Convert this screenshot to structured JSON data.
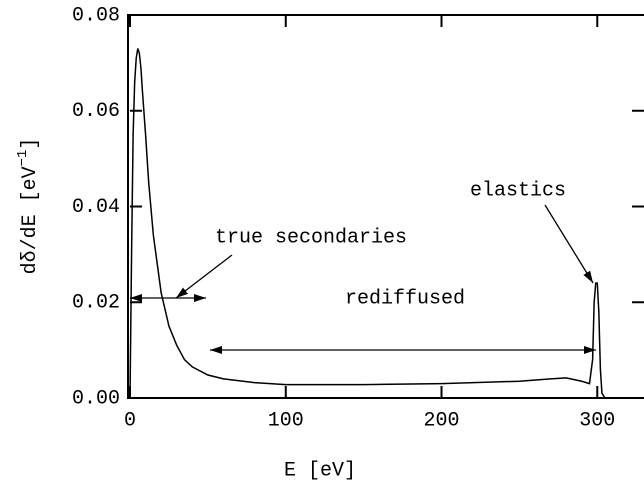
{
  "chart_data": {
    "type": "line",
    "xlabel": "E [eV]",
    "ylabel": [
      "dδ/dE [eV",
      "−1",
      "]"
    ],
    "x": [
      0,
      1,
      2,
      3,
      4,
      5,
      6,
      7,
      8,
      10,
      12,
      15,
      20,
      25,
      30,
      35,
      40,
      50,
      60,
      80,
      100,
      150,
      200,
      250,
      270,
      280,
      290,
      295,
      297,
      298,
      299,
      300,
      301,
      302,
      303,
      305,
      310
    ],
    "series": [
      {
        "color": "#000000",
        "values": [
          0,
          0.03,
          0.055,
          0.066,
          0.071,
          0.073,
          0.072,
          0.069,
          0.064,
          0.055,
          0.045,
          0.034,
          0.022,
          0.015,
          0.011,
          0.008,
          0.0065,
          0.0048,
          0.004,
          0.0032,
          0.0028,
          0.0028,
          0.003,
          0.0035,
          0.004,
          0.0042,
          0.0035,
          0.003,
          0.008,
          0.02,
          0.024,
          0.024,
          0.018,
          0.006,
          0.001,
          0,
          0
        ]
      }
    ],
    "xlim": [
      0,
      330
    ],
    "ylim": [
      0,
      0.08
    ],
    "xticks": [
      0,
      100,
      200,
      300
    ],
    "yticks": [
      {
        "value": 0,
        "label": "0.00"
      },
      0.02,
      0.04,
      0.06,
      0.08
    ],
    "annotations": [
      "true secondaries",
      "rediffused",
      "elastics"
    ]
  }
}
